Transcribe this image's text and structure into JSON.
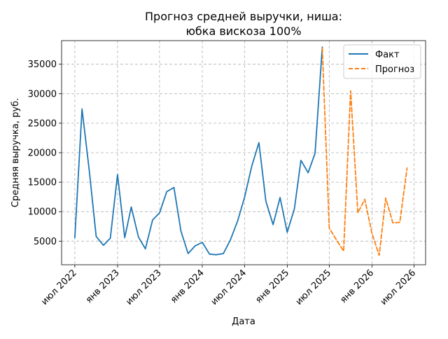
{
  "chart_data": {
    "type": "line",
    "title_line1": "Прогноз средней выручки, ниша:",
    "title_line2": "юбка вискоза 100%",
    "xlabel": "Дата",
    "ylabel": "Средняя выручка, руб.",
    "grid": true,
    "legend_position": "top-right",
    "x_ticks": [
      {
        "date": "2022-07-01",
        "label": "июл 2022"
      },
      {
        "date": "2023-01-01",
        "label": "янв 2023"
      },
      {
        "date": "2023-07-01",
        "label": "июл 2023"
      },
      {
        "date": "2024-01-01",
        "label": "янв 2024"
      },
      {
        "date": "2024-07-01",
        "label": "июл 2024"
      },
      {
        "date": "2025-01-01",
        "label": "янв 2025"
      },
      {
        "date": "2025-07-01",
        "label": "июл 2025"
      },
      {
        "date": "2026-01-01",
        "label": "янв 2026"
      },
      {
        "date": "2026-07-01",
        "label": "июл 2026"
      }
    ],
    "y_ticks": [
      5000,
      10000,
      15000,
      20000,
      25000,
      30000,
      35000
    ],
    "xlim": [
      "2022-05-05",
      "2026-08-20"
    ],
    "ylim": [
      1000,
      39000
    ],
    "series": [
      {
        "name": "Факт",
        "color": "#1f77b4",
        "dash": "solid",
        "points": [
          [
            "2022-07-01",
            5600
          ],
          [
            "2022-08-01",
            27400
          ],
          [
            "2022-09-01",
            17000
          ],
          [
            "2022-10-01",
            5800
          ],
          [
            "2022-11-01",
            4300
          ],
          [
            "2022-12-01",
            5500
          ],
          [
            "2023-01-01",
            16300
          ],
          [
            "2023-02-01",
            5600
          ],
          [
            "2023-03-01",
            10800
          ],
          [
            "2023-04-01",
            5700
          ],
          [
            "2023-05-01",
            3700
          ],
          [
            "2023-06-01",
            8600
          ],
          [
            "2023-07-01",
            9800
          ],
          [
            "2023-08-01",
            13400
          ],
          [
            "2023-09-01",
            14100
          ],
          [
            "2023-10-01",
            6700
          ],
          [
            "2023-11-01",
            2900
          ],
          [
            "2023-12-01",
            4200
          ],
          [
            "2024-01-01",
            4800
          ],
          [
            "2024-02-01",
            2800
          ],
          [
            "2024-03-01",
            2700
          ],
          [
            "2024-04-01",
            2900
          ],
          [
            "2024-05-01",
            5200
          ],
          [
            "2024-06-01",
            8400
          ],
          [
            "2024-07-01",
            12400
          ],
          [
            "2024-08-01",
            17700
          ],
          [
            "2024-09-01",
            21700
          ],
          [
            "2024-10-01",
            11800
          ],
          [
            "2024-11-01",
            7800
          ],
          [
            "2024-12-01",
            12400
          ],
          [
            "2025-01-01",
            6500
          ],
          [
            "2025-02-01",
            10500
          ],
          [
            "2025-03-01",
            18700
          ],
          [
            "2025-04-01",
            16600
          ],
          [
            "2025-05-01",
            19900
          ],
          [
            "2025-06-01",
            37900
          ]
        ]
      },
      {
        "name": "Прогноз",
        "color": "#ff7f0e",
        "dash": "dashed",
        "points": [
          [
            "2025-06-01",
            37700
          ],
          [
            "2025-07-01",
            7200
          ],
          [
            "2025-08-01",
            5200
          ],
          [
            "2025-09-01",
            3300
          ],
          [
            "2025-10-01",
            30500
          ],
          [
            "2025-11-01",
            9800
          ],
          [
            "2025-12-01",
            12100
          ],
          [
            "2026-01-01",
            6300
          ],
          [
            "2026-02-01",
            2600
          ],
          [
            "2026-03-01",
            12300
          ],
          [
            "2026-04-01",
            8100
          ],
          [
            "2026-05-01",
            8200
          ],
          [
            "2026-06-01",
            17400
          ]
        ]
      }
    ]
  }
}
